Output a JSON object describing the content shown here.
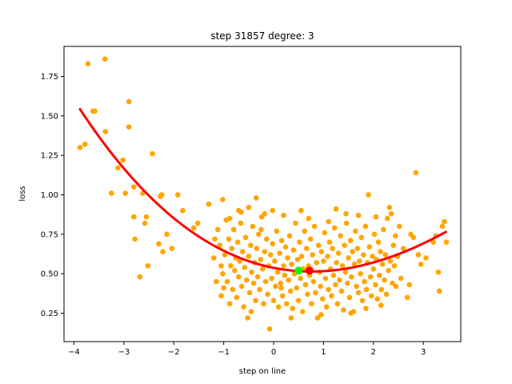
{
  "chart_data": {
    "type": "scatter",
    "title": "step 31857   degree: 3",
    "xlabel": "step on line",
    "ylabel": "loss",
    "xlim": [
      -4.2,
      3.75
    ],
    "ylim": [
      0.07,
      1.94
    ],
    "xticks": [
      -4,
      -3,
      -2,
      -1,
      0,
      1,
      2,
      3
    ],
    "xtick_labels": [
      "−4",
      "−3",
      "−2",
      "−1",
      "0",
      "1",
      "2",
      "3"
    ],
    "yticks": [
      0.25,
      0.5,
      0.75,
      1.0,
      1.25,
      1.5,
      1.75
    ],
    "ytick_labels": [
      "0.25",
      "0.50",
      "0.75",
      "1.00",
      "1.25",
      "1.50",
      "1.75"
    ],
    "grid": false,
    "colors": {
      "points": "#ffa500",
      "fit_curve": "#ff0000",
      "min_marker": "#ff0000",
      "current_marker": "#00ff00"
    },
    "scatter_points": [
      [
        -3.88,
        1.3
      ],
      [
        -3.78,
        1.32
      ],
      [
        -3.72,
        1.83
      ],
      [
        -3.62,
        1.53
      ],
      [
        -3.58,
        1.53
      ],
      [
        -3.38,
        1.86
      ],
      [
        -3.37,
        1.4
      ],
      [
        -3.25,
        1.01
      ],
      [
        -3.12,
        1.17
      ],
      [
        -3.02,
        1.22
      ],
      [
        -2.97,
        1.01
      ],
      [
        -2.9,
        1.59
      ],
      [
        -2.9,
        1.43
      ],
      [
        -2.8,
        1.05
      ],
      [
        -2.8,
        0.86
      ],
      [
        -2.78,
        0.72
      ],
      [
        -2.68,
        0.48
      ],
      [
        -2.62,
        1.01
      ],
      [
        -2.58,
        0.82
      ],
      [
        -2.55,
        0.86
      ],
      [
        -2.52,
        0.55
      ],
      [
        -2.43,
        1.26
      ],
      [
        -2.3,
        0.69
      ],
      [
        -2.27,
        0.99
      ],
      [
        -2.24,
        1.0
      ],
      [
        -2.22,
        0.64
      ],
      [
        -2.14,
        0.75
      ],
      [
        -2.04,
        0.66
      ],
      [
        -1.92,
        1.0
      ],
      [
        -1.82,
        0.9
      ],
      [
        -1.6,
        0.79
      ],
      [
        -1.52,
        0.82
      ],
      [
        -1.3,
        0.94
      ],
      [
        -1.18,
        0.72
      ],
      [
        -1.05,
        0.55
      ],
      [
        -1.02,
        0.97
      ],
      [
        -0.88,
        0.85
      ],
      [
        -0.65,
        0.89
      ],
      [
        -0.5,
        0.92
      ],
      [
        -0.35,
        0.98
      ],
      [
        -0.18,
        0.88
      ],
      [
        -0.02,
        0.9
      ],
      [
        -1.2,
        0.6
      ],
      [
        -1.12,
        0.78
      ],
      [
        -1.08,
        0.68
      ],
      [
        -1.05,
        0.36
      ],
      [
        -1.02,
        0.5
      ],
      [
        -0.98,
        0.62
      ],
      [
        -0.95,
        0.84
      ],
      [
        -0.93,
        0.45
      ],
      [
        -0.9,
        0.72
      ],
      [
        -0.88,
        0.31
      ],
      [
        -0.86,
        0.55
      ],
      [
        -0.84,
        0.66
      ],
      [
        -0.82,
        0.4
      ],
      [
        -0.8,
        0.78
      ],
      [
        -0.78,
        0.52
      ],
      [
        -0.76,
        0.6
      ],
      [
        -0.74,
        0.35
      ],
      [
        -0.72,
        0.7
      ],
      [
        -0.7,
        0.48
      ],
      [
        -0.68,
        0.58
      ],
      [
        -0.66,
        0.82
      ],
      [
        -0.64,
        0.42
      ],
      [
        -0.62,
        0.64
      ],
      [
        -0.6,
        0.29
      ],
      [
        -0.58,
        0.54
      ],
      [
        -0.56,
        0.73
      ],
      [
        -0.54,
        0.46
      ],
      [
        -0.52,
        0.22
      ],
      [
        -0.5,
        0.61
      ],
      [
        -0.48,
        0.38
      ],
      [
        -0.46,
        0.68
      ],
      [
        -0.44,
        0.51
      ],
      [
        -0.42,
        0.8
      ],
      [
        -0.4,
        0.44
      ],
      [
        -0.38,
        0.57
      ],
      [
        -0.36,
        0.33
      ],
      [
        -0.34,
        0.66
      ],
      [
        -0.32,
        0.48
      ],
      [
        -0.3,
        0.75
      ],
      [
        -0.28,
        0.4
      ],
      [
        -0.26,
        0.59
      ],
      [
        -0.24,
        0.86
      ],
      [
        -0.22,
        0.53
      ],
      [
        -0.2,
        0.31
      ],
      [
        -0.18,
        0.64
      ],
      [
        -0.16,
        0.45
      ],
      [
        -0.14,
        0.72
      ],
      [
        -0.12,
        0.37
      ],
      [
        -0.1,
        0.55
      ],
      [
        -0.08,
        0.15
      ],
      [
        -0.06,
        0.62
      ],
      [
        -0.04,
        0.47
      ],
      [
        -0.02,
        0.69
      ],
      [
        0.0,
        0.33
      ],
      [
        0.02,
        0.58
      ],
      [
        0.04,
        0.42
      ],
      [
        0.06,
        0.77
      ],
      [
        0.08,
        0.51
      ],
      [
        0.1,
        0.29
      ],
      [
        0.12,
        0.63
      ],
      [
        0.14,
        0.44
      ],
      [
        0.16,
        0.71
      ],
      [
        0.18,
        0.36
      ],
      [
        0.2,
        0.55
      ],
      [
        0.22,
        0.49
      ],
      [
        0.24,
        0.67
      ],
      [
        0.26,
        0.31
      ],
      [
        0.28,
        0.6
      ],
      [
        0.3,
        0.46
      ],
      [
        0.32,
        0.74
      ],
      [
        0.34,
        0.39
      ],
      [
        0.36,
        0.56
      ],
      [
        0.38,
        0.28
      ],
      [
        0.4,
        0.65
      ],
      [
        0.42,
        0.5
      ],
      [
        0.44,
        0.82
      ],
      [
        0.46,
        0.41
      ],
      [
        0.48,
        0.59
      ],
      [
        0.5,
        0.33
      ],
      [
        0.52,
        0.7
      ],
      [
        0.54,
        0.47
      ],
      [
        0.56,
        0.61
      ],
      [
        0.58,
        0.26
      ],
      [
        0.6,
        0.53
      ],
      [
        0.62,
        0.77
      ],
      [
        0.64,
        0.43
      ],
      [
        0.66,
        0.66
      ],
      [
        0.68,
        0.37
      ],
      [
        0.7,
        0.55
      ],
      [
        0.72,
        0.49
      ],
      [
        0.74,
        0.72
      ],
      [
        0.76,
        0.31
      ],
      [
        0.78,
        0.62
      ],
      [
        0.8,
        0.45
      ],
      [
        0.82,
        0.8
      ],
      [
        0.84,
        0.38
      ],
      [
        0.86,
        0.57
      ],
      [
        0.88,
        0.22
      ],
      [
        0.9,
        0.68
      ],
      [
        0.92,
        0.51
      ],
      [
        0.94,
        0.42
      ],
      [
        0.96,
        0.64
      ],
      [
        0.98,
        0.34
      ],
      [
        1.0,
        0.58
      ],
      [
        1.02,
        0.76
      ],
      [
        1.04,
        0.47
      ],
      [
        1.06,
        0.29
      ],
      [
        1.08,
        0.61
      ],
      [
        1.1,
        0.4
      ],
      [
        1.12,
        0.7
      ],
      [
        1.14,
        0.53
      ],
      [
        1.16,
        0.36
      ],
      [
        1.18,
        0.66
      ],
      [
        1.2,
        0.49
      ],
      [
        1.22,
        0.79
      ],
      [
        1.24,
        0.43
      ],
      [
        1.26,
        0.57
      ],
      [
        1.28,
        0.31
      ],
      [
        1.3,
        0.63
      ],
      [
        1.32,
        0.46
      ],
      [
        1.34,
        0.74
      ],
      [
        1.36,
        0.39
      ],
      [
        1.38,
        0.55
      ],
      [
        1.4,
        0.27
      ],
      [
        1.42,
        0.68
      ],
      [
        1.44,
        0.51
      ],
      [
        1.46,
        0.82
      ],
      [
        1.48,
        0.44
      ],
      [
        1.5,
        0.6
      ],
      [
        1.52,
        0.35
      ],
      [
        1.54,
        0.71
      ],
      [
        1.56,
        0.48
      ],
      [
        1.58,
        0.64
      ],
      [
        1.6,
        0.26
      ],
      [
        1.62,
        0.56
      ],
      [
        1.64,
        0.77
      ],
      [
        1.66,
        0.42
      ],
      [
        1.68,
        0.66
      ],
      [
        1.7,
        0.38
      ],
      [
        1.72,
        0.58
      ],
      [
        1.74,
        0.5
      ],
      [
        1.76,
        0.73
      ],
      [
        1.78,
        0.33
      ],
      [
        1.8,
        0.62
      ],
      [
        1.82,
        0.45
      ],
      [
        1.84,
        0.8
      ],
      [
        1.86,
        0.4
      ],
      [
        1.88,
        0.57
      ],
      [
        1.9,
        1.0
      ],
      [
        1.92,
        0.67
      ],
      [
        1.94,
        0.48
      ],
      [
        1.96,
        0.36
      ],
      [
        1.98,
        0.61
      ],
      [
        2.0,
        0.53
      ],
      [
        2.02,
        0.75
      ],
      [
        2.04,
        0.43
      ],
      [
        2.06,
        0.59
      ],
      [
        2.08,
        0.34
      ],
      [
        2.1,
        0.7
      ],
      [
        2.12,
        0.49
      ],
      [
        2.14,
        0.64
      ],
      [
        2.16,
        0.4
      ],
      [
        2.18,
        0.56
      ],
      [
        2.2,
        0.78
      ],
      [
        2.22,
        0.46
      ],
      [
        2.24,
        0.62
      ],
      [
        2.26,
        0.37
      ],
      [
        2.28,
        0.85
      ],
      [
        2.3,
        0.52
      ],
      [
        2.32,
        0.92
      ],
      [
        2.34,
        0.58
      ],
      [
        2.36,
        0.88
      ],
      [
        2.38,
        0.44
      ],
      [
        2.4,
        0.68
      ],
      [
        2.42,
        0.55
      ],
      [
        2.44,
        0.74
      ],
      [
        2.48,
        0.61
      ],
      [
        2.52,
        0.8
      ],
      [
        2.55,
        0.47
      ],
      [
        2.6,
        0.66
      ],
      [
        2.68,
        0.35
      ],
      [
        2.72,
        0.43
      ],
      [
        2.75,
        0.75
      ],
      [
        2.8,
        0.73
      ],
      [
        2.85,
        1.14
      ],
      [
        2.9,
        0.62
      ],
      [
        2.95,
        0.56
      ],
      [
        3.05,
        0.6
      ],
      [
        3.2,
        0.7
      ],
      [
        3.25,
        0.74
      ],
      [
        3.3,
        0.51
      ],
      [
        3.32,
        0.39
      ],
      [
        3.38,
        0.8
      ],
      [
        3.42,
        0.83
      ],
      [
        3.46,
        0.7
      ],
      [
        -0.7,
        0.9
      ],
      [
        0.2,
        0.87
      ],
      [
        0.7,
        0.85
      ],
      [
        1.1,
        0.83
      ],
      [
        1.45,
        0.88
      ],
      [
        -0.45,
        0.26
      ],
      [
        0.35,
        0.22
      ],
      [
        0.95,
        0.24
      ],
      [
        1.55,
        0.25
      ],
      [
        2.15,
        0.3
      ],
      [
        -1.15,
        0.45
      ],
      [
        -1.0,
        0.41
      ],
      [
        -0.25,
        0.78
      ],
      [
        0.55,
        0.9
      ],
      [
        1.25,
        0.91
      ],
      [
        1.7,
        0.87
      ],
      [
        2.05,
        0.86
      ],
      [
        2.45,
        0.42
      ],
      [
        1.85,
        0.28
      ],
      [
        0.15,
        0.41
      ]
    ],
    "fit_curve": {
      "x_range": [
        -3.88,
        3.45
      ],
      "coefficients_cubic_to_constant": [
        -0.00181,
        0.04358,
        -0.06285,
        0.53719
      ]
    },
    "markers": [
      {
        "name": "fit-minimum",
        "x": 0.72,
        "y": 0.52,
        "color": "#ff0000"
      },
      {
        "name": "current-step",
        "x": 0.5,
        "y": 0.52,
        "color": "#00ff00"
      }
    ]
  }
}
